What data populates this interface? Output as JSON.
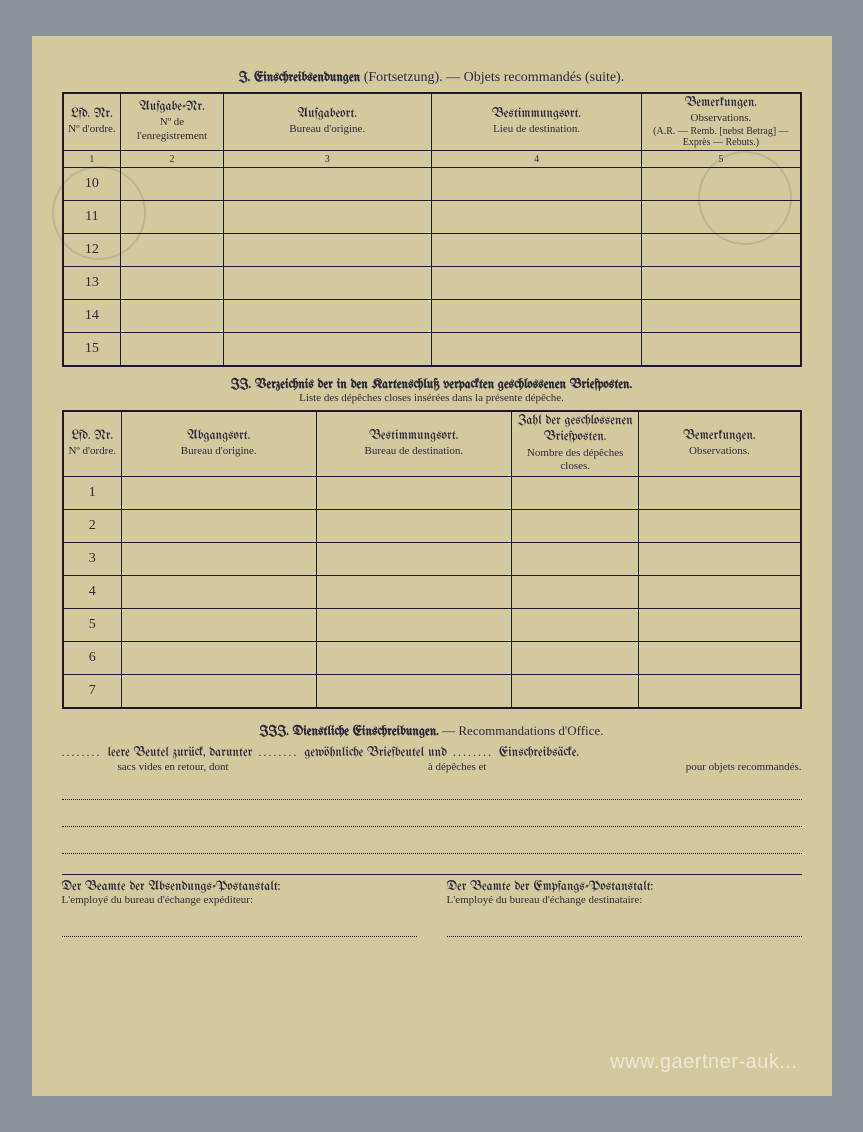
{
  "colors": {
    "paper": "#d4c89f",
    "ink": "#1a1a2a",
    "frame": "#8a9299"
  },
  "section1": {
    "title_de": "I. Einschreibsendungen",
    "title_de_suffix": "(Fortsetzung).",
    "title_fr": "— Objets recommandés (suite).",
    "headers": {
      "c1_de": "Lfd. Nr.",
      "c1_fr": "Nº d'ordre.",
      "c2_de": "Aufgabe-Nr.",
      "c2_fr": "Nº de l'enregistrement",
      "c3_de": "Aufgabeort.",
      "c3_fr": "Bureau d'origine.",
      "c4_de": "Bestimmungsort.",
      "c4_fr": "Lieu de destination.",
      "c5_de": "Bemerkungen.",
      "c5_fr": "Observations.",
      "c5_note": "(A.R. — Remb. [nebst Betrag] — Exprès — Rebuts.)"
    },
    "colnums": [
      "1",
      "2",
      "3",
      "4",
      "5"
    ],
    "rows": [
      "10",
      "11",
      "12",
      "13",
      "14",
      "15"
    ]
  },
  "section2": {
    "title_de": "II. Verzeichnis der in den Kartenschluß verpackten geschlossenen Briefposten.",
    "title_fr": "Liste des dépêches closes insérées dans la présente dépêche.",
    "headers": {
      "c1_de": "Lfd. Nr.",
      "c1_fr": "Nº d'ordre.",
      "c2_de": "Abgangsort.",
      "c2_fr": "Bureau d'origine.",
      "c3_de": "Bestimmungsort.",
      "c3_fr": "Bureau de destination.",
      "c4_de": "Zahl der geschlossenen Briefposten.",
      "c4_fr": "Nombre des dépêches closes.",
      "c5_de": "Bemerkungen.",
      "c5_fr": "Observations."
    },
    "rows": [
      "1",
      "2",
      "3",
      "4",
      "5",
      "6",
      "7"
    ]
  },
  "section3": {
    "title_de": "III. Dienstliche Einschreibungen.",
    "title_fr": "— Recommandations d'Office.",
    "line1_a_de": "leere Beutel zurück, darunter",
    "line1_a_fr": "sacs vides en retour, dont",
    "line1_b_de": "gewöhnliche Briefbeutel und",
    "line1_b_fr": "à dépêches et",
    "line1_c_de": "Einschreibsäcke.",
    "line1_c_fr": "pour objets recommandés."
  },
  "signatures": {
    "left_de": "Der Beamte der Absendungs-Postanstalt:",
    "left_fr": "L'employé du bureau d'échange expéditeur:",
    "right_de": "Der Beamte der Empfangs-Postanstalt:",
    "right_fr": "L'employé du bureau d'échange destinataire:"
  },
  "watermark": "www.gaertner-auk..."
}
